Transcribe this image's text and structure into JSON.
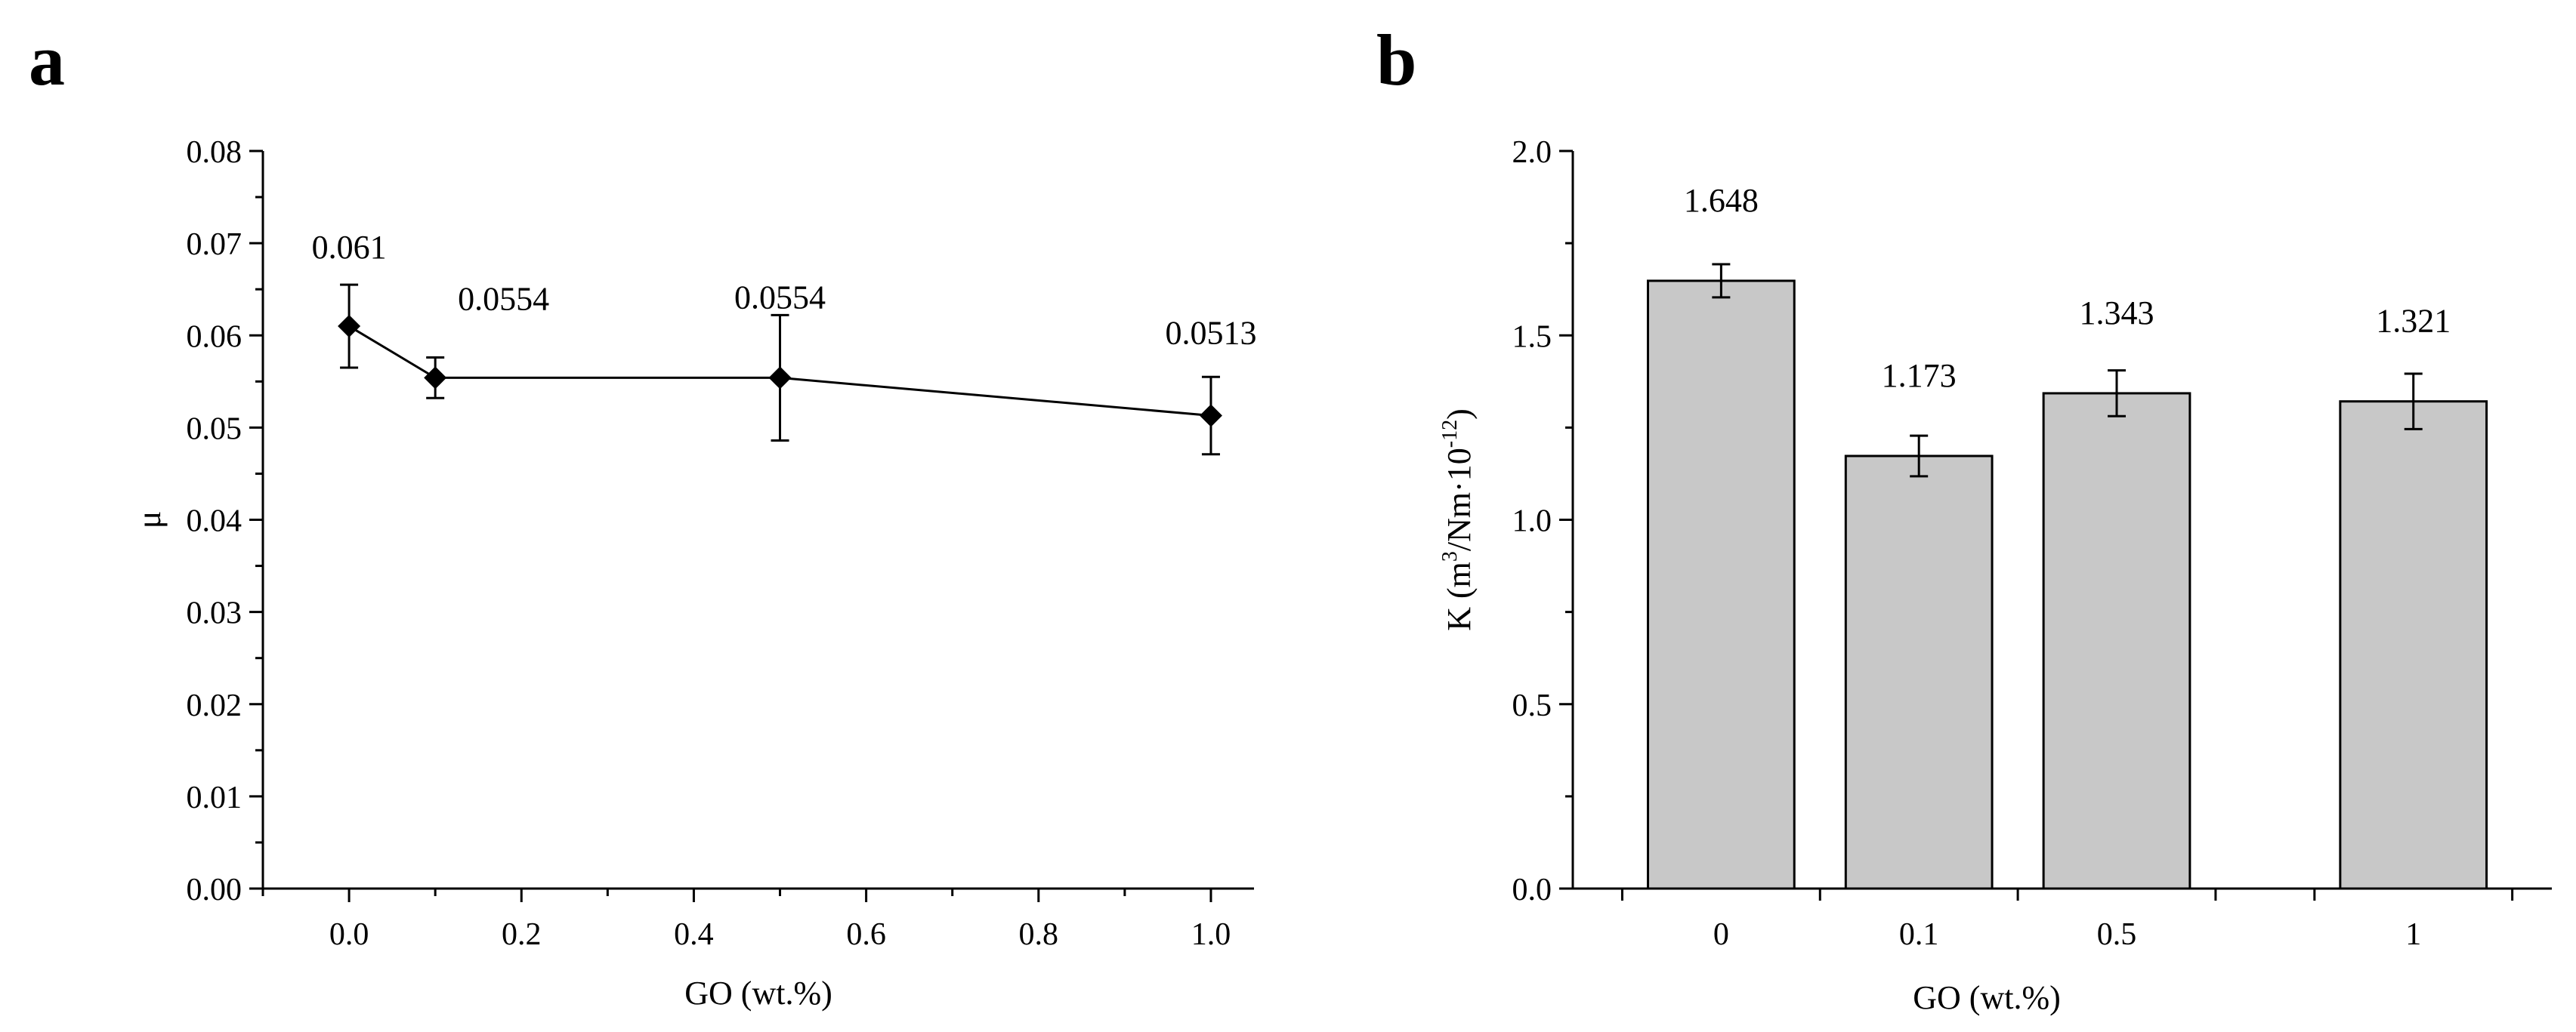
{
  "chart_data": [
    {
      "panel": "a",
      "type": "line",
      "xlabel": "GO (wt.%)",
      "ylabel": "μ",
      "xlim": [
        -0.1,
        1.05
      ],
      "ylim": [
        0.0,
        0.08
      ],
      "x_ticks": [
        "0.0",
        "0.2",
        "0.4",
        "0.6",
        "0.8",
        "1.0"
      ],
      "x_tick_values": [
        0.0,
        0.2,
        0.4,
        0.6,
        0.8,
        1.0
      ],
      "y_ticks": [
        "0.00",
        "0.01",
        "0.02",
        "0.03",
        "0.04",
        "0.05",
        "0.06",
        "0.07",
        "0.08"
      ],
      "y_tick_values": [
        0.0,
        0.01,
        0.02,
        0.03,
        0.04,
        0.05,
        0.06,
        0.07,
        0.08
      ],
      "x": [
        0.0,
        0.1,
        0.5,
        1.0
      ],
      "y": [
        0.061,
        0.0554,
        0.0554,
        0.0513
      ],
      "error": [
        0.0045,
        0.0022,
        0.0068,
        0.0042
      ],
      "labels": [
        "0.061",
        "0.0554",
        "0.0554",
        "0.0513"
      ],
      "marker": "diamond",
      "color": "#000000"
    },
    {
      "panel": "b",
      "type": "bar",
      "xlabel": "GO (wt.%)",
      "ylabel_main": "K (m",
      "ylabel_sup1": "3",
      "ylabel_mid": "/Nm·10",
      "ylabel_sup2": "-12",
      "ylabel_end": ")",
      "ylim": [
        0.0,
        2.0
      ],
      "y_ticks": [
        "0.0",
        "0.5",
        "1.0",
        "1.5",
        "2.0"
      ],
      "y_tick_values": [
        0.0,
        0.5,
        1.0,
        1.5,
        2.0
      ],
      "categories": [
        "0",
        "0.1",
        "0.5",
        "1"
      ],
      "x_positions": [
        0,
        1,
        2,
        3.5
      ],
      "xlim": [
        -0.75,
        4.2
      ],
      "values": [
        1.648,
        1.173,
        1.343,
        1.321
      ],
      "error": [
        0.045,
        0.055,
        0.062,
        0.075
      ],
      "labels": [
        "1.648",
        "1.173",
        "1.343",
        "1.321"
      ],
      "bar_color": "#c8c8c8",
      "edge_color": "#000000"
    }
  ],
  "panel_labels": {
    "a": "a",
    "b": "b"
  }
}
